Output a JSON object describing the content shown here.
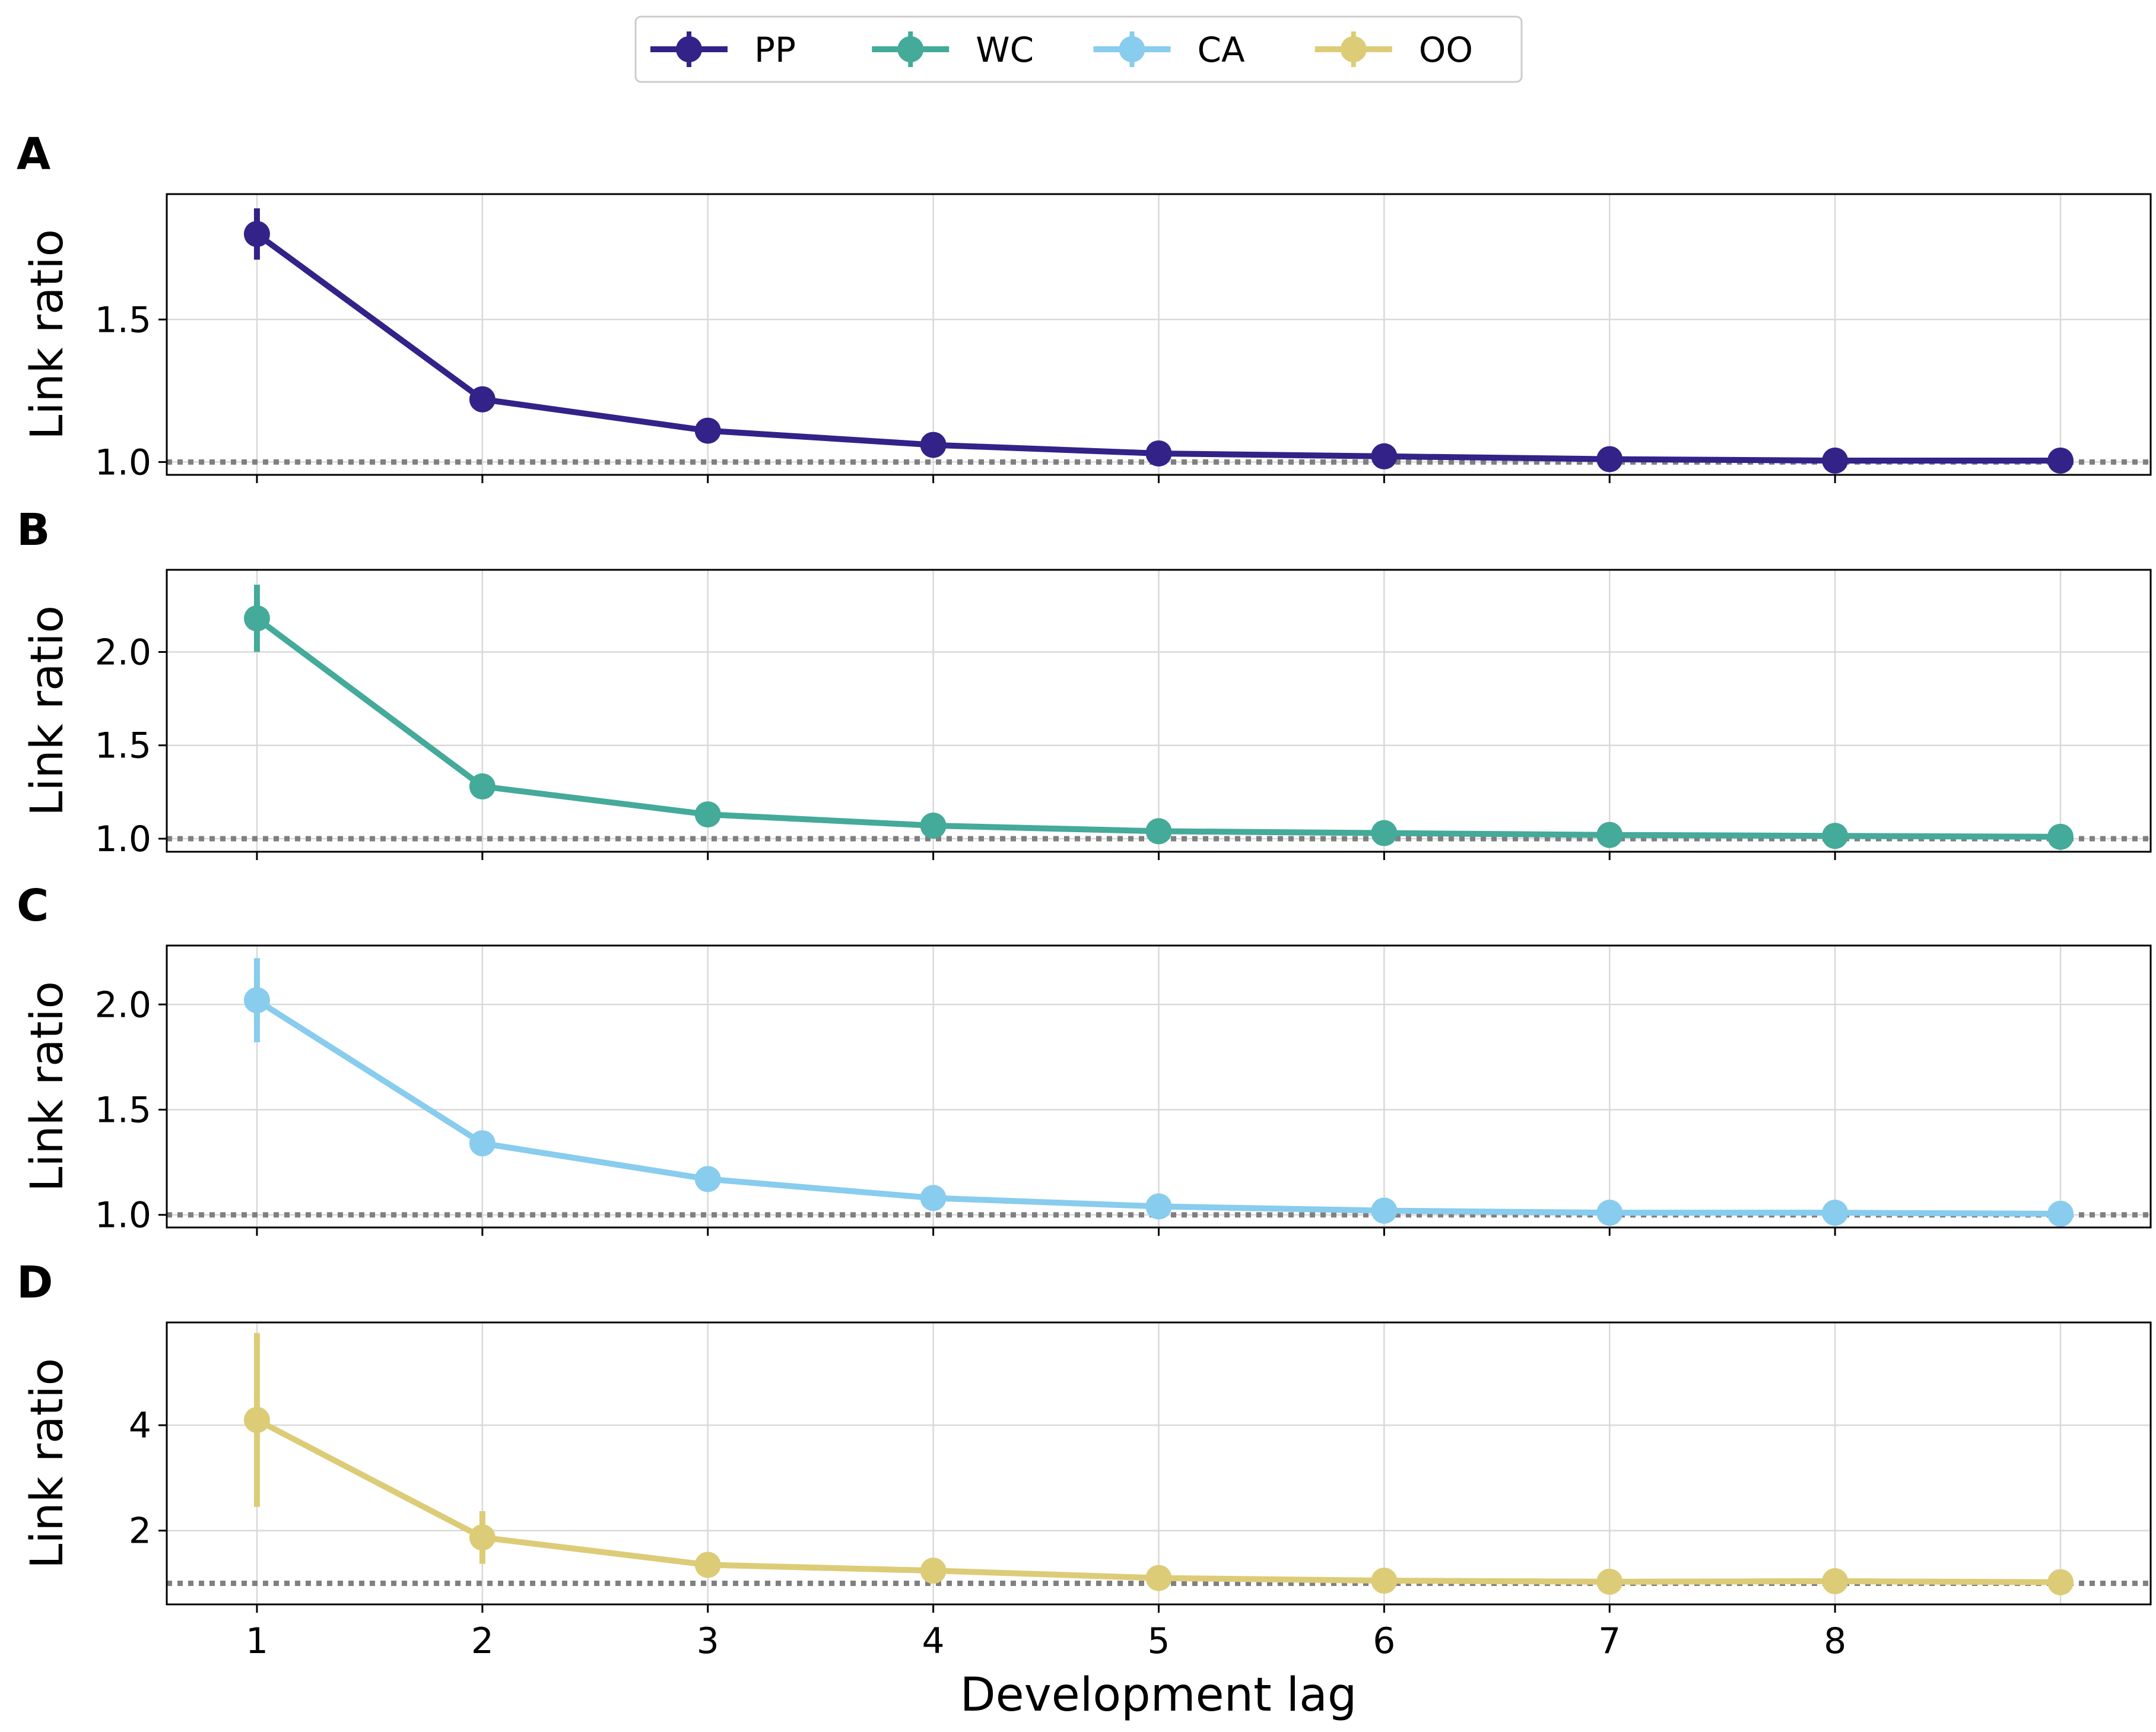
{
  "chart_data": [
    {
      "type": "line",
      "panel_label": "A",
      "ylabel": "Link ratio",
      "xlabel": "",
      "x": [
        1,
        2,
        3,
        4,
        5,
        6,
        7,
        8,
        9
      ],
      "xlim": [
        0.6,
        9.4
      ],
      "ylim": [
        0.955,
        1.94
      ],
      "yticks": [
        1.0,
        1.5
      ],
      "yticklabels": [
        "1.0",
        "1.5"
      ],
      "reference_line": 1.0,
      "grid": true,
      "series": [
        {
          "name": "PP",
          "color": "#332288",
          "values": [
            1.8,
            1.22,
            1.11,
            1.06,
            1.03,
            1.02,
            1.01,
            1.005,
            1.005
          ],
          "errors": [
            0.09,
            0.0,
            0.0,
            0.0,
            0.0,
            0.0,
            0.0,
            0.0,
            0.0
          ]
        }
      ]
    },
    {
      "type": "line",
      "panel_label": "B",
      "ylabel": "Link ratio",
      "xlabel": "",
      "x": [
        1,
        2,
        3,
        4,
        5,
        6,
        7,
        8,
        9
      ],
      "xlim": [
        0.6,
        9.4
      ],
      "ylim": [
        0.93,
        2.44
      ],
      "yticks": [
        1.0,
        1.5,
        2.0
      ],
      "yticklabels": [
        "1.0",
        "1.5",
        "2.0"
      ],
      "reference_line": 1.0,
      "grid": true,
      "series": [
        {
          "name": "WC",
          "color": "#44AA99",
          "values": [
            2.18,
            1.28,
            1.13,
            1.07,
            1.04,
            1.03,
            1.02,
            1.015,
            1.01
          ],
          "errors": [
            0.18,
            0.0,
            0.0,
            0.0,
            0.0,
            0.0,
            0.0,
            0.0,
            0.0
          ]
        }
      ]
    },
    {
      "type": "line",
      "panel_label": "C",
      "ylabel": "Link ratio",
      "xlabel": "",
      "x": [
        1,
        2,
        3,
        4,
        5,
        6,
        7,
        8,
        9
      ],
      "xlim": [
        0.6,
        9.4
      ],
      "ylim": [
        0.94,
        2.28
      ],
      "yticks": [
        1.0,
        1.5,
        2.0
      ],
      "yticklabels": [
        "1.0",
        "1.5",
        "2.0"
      ],
      "reference_line": 1.0,
      "grid": true,
      "series": [
        {
          "name": "CA",
          "color": "#88CCEE",
          "values": [
            2.02,
            1.34,
            1.17,
            1.08,
            1.04,
            1.02,
            1.01,
            1.01,
            1.005
          ],
          "errors": [
            0.2,
            0.0,
            0.0,
            0.0,
            0.0,
            0.0,
            0.0,
            0.0,
            0.0
          ]
        }
      ]
    },
    {
      "type": "line",
      "panel_label": "D",
      "ylabel": "Link ratio",
      "xlabel": "Development lag",
      "x": [
        1,
        2,
        3,
        4,
        5,
        6,
        7,
        8,
        9
      ],
      "xlim": [
        0.6,
        9.4
      ],
      "xticks": [
        1,
        2,
        3,
        4,
        5,
        6,
        7,
        8
      ],
      "xticklabels": [
        "1",
        "2",
        "3",
        "4",
        "5",
        "6",
        "7",
        "8"
      ],
      "ylim": [
        0.6,
        5.95
      ],
      "yticks": [
        2,
        4
      ],
      "yticklabels": [
        "2",
        "4"
      ],
      "reference_line": 1.0,
      "grid": true,
      "series": [
        {
          "name": "OO",
          "color": "#DDCC77",
          "values": [
            4.1,
            1.87,
            1.35,
            1.24,
            1.1,
            1.05,
            1.03,
            1.04,
            1.02
          ],
          "errors": [
            1.65,
            0.5,
            0.0,
            0.0,
            0.0,
            0.0,
            0.0,
            0.0,
            0.0
          ]
        }
      ]
    }
  ],
  "legend": {
    "placement": "top-center",
    "entries": [
      {
        "name": "PP",
        "color": "#332288"
      },
      {
        "name": "WC",
        "color": "#44AA99"
      },
      {
        "name": "CA",
        "color": "#88CCEE"
      },
      {
        "name": "OO",
        "color": "#DDCC77"
      }
    ]
  }
}
